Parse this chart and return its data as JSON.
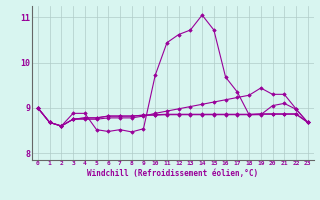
{
  "xlabel": "Windchill (Refroidissement éolien,°C)",
  "background_color": "#d8f5f0",
  "grid_color": "#b0ccc8",
  "line_color": "#990099",
  "xlim": [
    -0.5,
    23.5
  ],
  "ylim": [
    7.85,
    11.25
  ],
  "yticks": [
    8,
    9,
    10,
    11
  ],
  "xticks": [
    0,
    1,
    2,
    3,
    4,
    5,
    6,
    7,
    8,
    9,
    10,
    11,
    12,
    13,
    14,
    15,
    16,
    17,
    18,
    19,
    20,
    21,
    22,
    23
  ],
  "line1": [
    9.0,
    8.68,
    8.6,
    8.88,
    8.88,
    8.52,
    8.48,
    8.52,
    8.47,
    8.54,
    9.72,
    10.44,
    10.62,
    10.72,
    11.05,
    10.72,
    9.68,
    9.35,
    8.85,
    8.85,
    9.05,
    9.1,
    8.97,
    8.68
  ],
  "line2": [
    9.0,
    8.68,
    8.6,
    8.75,
    8.75,
    8.75,
    8.78,
    8.78,
    8.78,
    8.82,
    8.88,
    8.93,
    8.98,
    9.03,
    9.08,
    9.13,
    9.18,
    9.23,
    9.28,
    9.44,
    9.3,
    9.3,
    8.98,
    8.68
  ],
  "line3": [
    9.0,
    8.68,
    8.6,
    8.75,
    8.78,
    8.78,
    8.82,
    8.82,
    8.82,
    8.84,
    8.85,
    8.86,
    8.86,
    8.86,
    8.86,
    8.86,
    8.86,
    8.86,
    8.86,
    8.87,
    8.87,
    8.87,
    8.87,
    8.68
  ],
  "line4": [
    9.0,
    8.68,
    8.6,
    8.75,
    8.78,
    8.78,
    8.82,
    8.82,
    8.82,
    8.84,
    8.84,
    8.85,
    8.85,
    8.85,
    8.85,
    8.85,
    8.85,
    8.85,
    8.85,
    8.86,
    8.86,
    8.86,
    8.86,
    8.68
  ]
}
